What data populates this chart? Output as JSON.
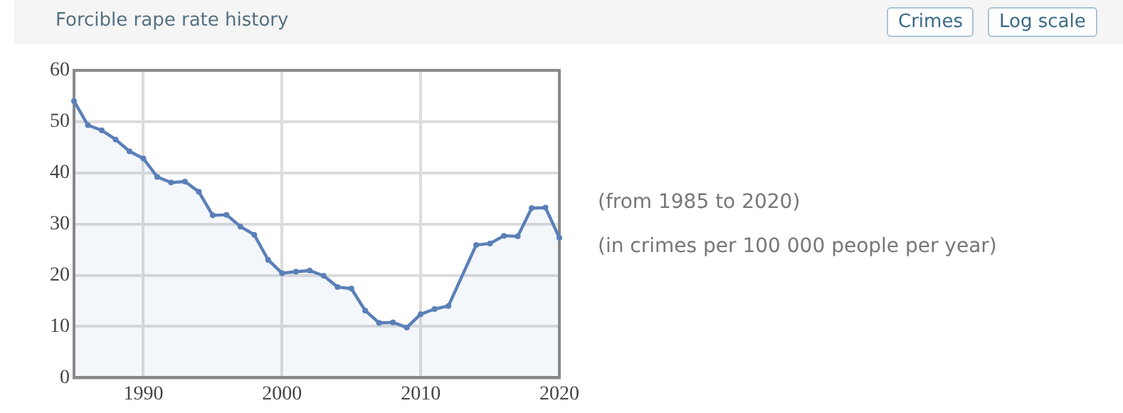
{
  "chart_data": {
    "type": "area",
    "title": "Forcible rape rate history",
    "x": [
      1985,
      1986,
      1987,
      1988,
      1989,
      1990,
      1991,
      1992,
      1993,
      1994,
      1995,
      1996,
      1997,
      1998,
      1999,
      2000,
      2001,
      2002,
      2003,
      2004,
      2005,
      2006,
      2007,
      2008,
      2009,
      2010,
      2011,
      2012,
      2014,
      2015,
      2016,
      2017,
      2018,
      2019,
      2020
    ],
    "values": [
      54,
      49.3,
      48.3,
      46.5,
      44.2,
      42.8,
      39.2,
      38.1,
      38.3,
      36.3,
      31.7,
      31.8,
      29.5,
      27.9,
      23,
      20.4,
      20.7,
      20.9,
      19.9,
      17.7,
      17.4,
      13.1,
      10.7,
      10.8,
      9.8,
      12.4,
      13.4,
      14,
      25.9,
      26.2,
      27.7,
      27.6,
      33.1,
      33.2,
      27.3
    ],
    "color": "#5a7fb8",
    "xlim": [
      1985,
      2020
    ],
    "xticks": [
      1990,
      2000,
      2010,
      2020
    ],
    "ylim": [
      0,
      60
    ],
    "yticks": [
      0,
      10,
      20,
      30,
      40,
      50,
      60
    ],
    "grid": true,
    "marker": "circle",
    "legend": false,
    "annotations": [
      "Crimes",
      "Log scale",
      "(from 1985 to 2020)",
      "(in crimes per 100 000 people per year)"
    ]
  }
}
